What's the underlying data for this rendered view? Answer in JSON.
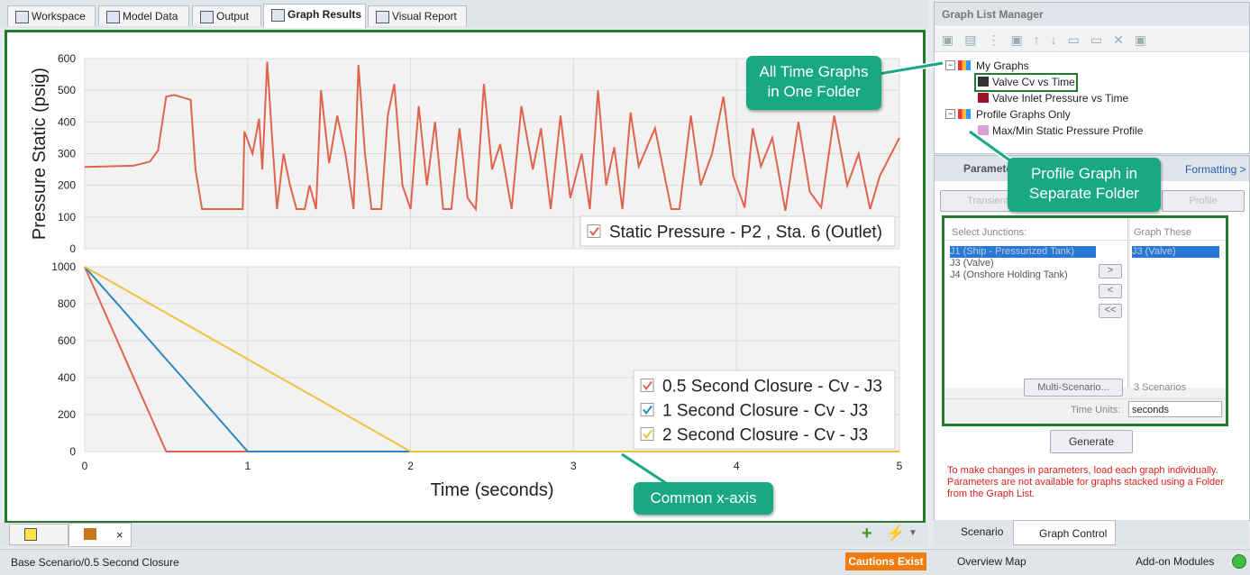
{
  "tabs": [
    "Workspace",
    "Model Data",
    "Output",
    "Graph Results",
    "Visual Report"
  ],
  "chart_data": [
    {
      "type": "line",
      "ylabel": "Pressure Static (psig)",
      "x": [
        0,
        0.3,
        0.4,
        0.45,
        0.5,
        0.55,
        0.65,
        0.68,
        0.72,
        0.97,
        0.98,
        1.03,
        1.07,
        1.09,
        1.12,
        1.15,
        1.18,
        1.22,
        1.26,
        1.3,
        1.35,
        1.38,
        1.42,
        1.45,
        1.5,
        1.55,
        1.6,
        1.65,
        1.68,
        1.72,
        1.76,
        1.82,
        1.86,
        1.9,
        1.95,
        2.0,
        2.05,
        2.1,
        2.15,
        2.2,
        2.25,
        2.3,
        2.35,
        2.4,
        2.45,
        2.5,
        2.55,
        2.62,
        2.68,
        2.75,
        2.8,
        2.86,
        2.92,
        2.98,
        3.05,
        3.1,
        3.15,
        3.2,
        3.25,
        3.3,
        3.35,
        3.4,
        3.5,
        3.6,
        3.65,
        3.72,
        3.78,
        3.85,
        3.92,
        3.98,
        4.05,
        4.1,
        4.15,
        4.22,
        4.3,
        4.38,
        4.45,
        4.52,
        4.6,
        4.68,
        4.75,
        4.82,
        4.88,
        4.95,
        5.0
      ],
      "xlim": [
        0,
        5
      ],
      "xticks": [
        0,
        1,
        2,
        3,
        4,
        5
      ],
      "ylim": [
        0,
        600
      ],
      "yticks": [
        0,
        100,
        200,
        300,
        400,
        500,
        600
      ],
      "grid": true,
      "legend": "lower right",
      "series": [
        {
          "name": "Static Pressure - P2 , Sta. 6 (Outlet)",
          "color": "#e0644c",
          "values": [
            258,
            262,
            275,
            310,
            480,
            485,
            470,
            250,
            125,
            125,
            370,
            300,
            410,
            250,
            590,
            350,
            125,
            300,
            200,
            125,
            125,
            200,
            125,
            500,
            270,
            420,
            300,
            125,
            580,
            300,
            125,
            125,
            420,
            520,
            200,
            125,
            450,
            200,
            400,
            125,
            125,
            380,
            160,
            125,
            520,
            250,
            330,
            125,
            450,
            250,
            380,
            125,
            420,
            160,
            300,
            125,
            500,
            200,
            320,
            125,
            430,
            260,
            380,
            125,
            125,
            420,
            200,
            300,
            480,
            230,
            130,
            380,
            260,
            350,
            120,
            400,
            180,
            130,
            420,
            200,
            300,
            125,
            230,
            300,
            350
          ]
        }
      ]
    },
    {
      "type": "line",
      "xlabel": "Time (seconds)",
      "x": [
        0,
        0.5,
        1,
        2,
        5
      ],
      "xlim": [
        0,
        5
      ],
      "xticks": [
        0,
        1,
        2,
        3,
        4,
        5
      ],
      "ylim": [
        0,
        1000
      ],
      "yticks": [
        0,
        200,
        400,
        600,
        800,
        1000
      ],
      "grid": true,
      "legend": "lower right",
      "series": [
        {
          "name": "0.5 Second Closure - Cv - J3",
          "color": "#e0644c",
          "values": [
            1000,
            0,
            0,
            0,
            0
          ]
        },
        {
          "name": "1 Second Closure - Cv - J3",
          "color": "#2e86c1",
          "values": [
            1000,
            500,
            0,
            0,
            0
          ]
        },
        {
          "name": "2 Second Closure - Cv - J3",
          "color": "#f1c040",
          "values": [
            1000,
            750,
            500,
            0,
            0
          ]
        }
      ]
    }
  ],
  "callouts": [
    [
      "All Time Graphs",
      "in One Folder"
    ],
    [
      "Profile Graph in",
      "Separate Folder"
    ],
    [
      "Common x-axis"
    ]
  ],
  "graph_list_manager": {
    "title": "Graph List Manager",
    "tree": [
      {
        "label": "My Graphs",
        "children": [
          "Valve Cv vs Time",
          "Valve Inlet Pressure vs Time"
        ]
      },
      {
        "label": "Profile Graphs Only",
        "children": [
          "Max/Min Static Pressure Profile"
        ]
      }
    ]
  },
  "parameters": {
    "title": "Parameters",
    "formatting": "Formatting >",
    "tabs": [
      "Transient",
      "Profile"
    ],
    "select_label": "Select Junctions:",
    "graph_label": "Graph These",
    "junctions": [
      "J1 (Ship - Pressurized Tank)",
      "J3 (Valve)",
      "J4 (Onshore Holding Tank)"
    ],
    "graphed": [
      "J3 (Valve)"
    ],
    "buttons": [
      ">",
      "<",
      "<<"
    ],
    "multi_scenario": "Multi-Scenario...",
    "scenarios": "3 Scenarios",
    "time_units_label": "Time Units:",
    "time_units": "seconds",
    "generate": "Generate",
    "note": [
      "To make changes in parameters, load each graph individually.",
      "Parameters are not available for graphs stacked using a Folder",
      "from the Graph List."
    ]
  },
  "bottom_tabs": [
    "Scenario",
    "Graph Control"
  ],
  "status": {
    "scenario": "Base Scenario/0.5 Second Closure",
    "cautions": "Cautions Exist",
    "overview": "Overview Map",
    "addons": "Add-on Modules"
  }
}
